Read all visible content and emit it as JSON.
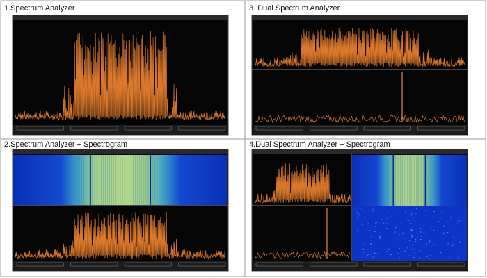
{
  "cells": [
    {
      "caption": "1.Spectrum Analyzer"
    },
    {
      "caption": "3. Dual Spectrum Analyzer"
    },
    {
      "caption": "2.Spectrum Analyzer + Spectrogram"
    },
    {
      "caption": "4.Dual Spectrum Analyzer + Spectrogram"
    }
  ]
}
